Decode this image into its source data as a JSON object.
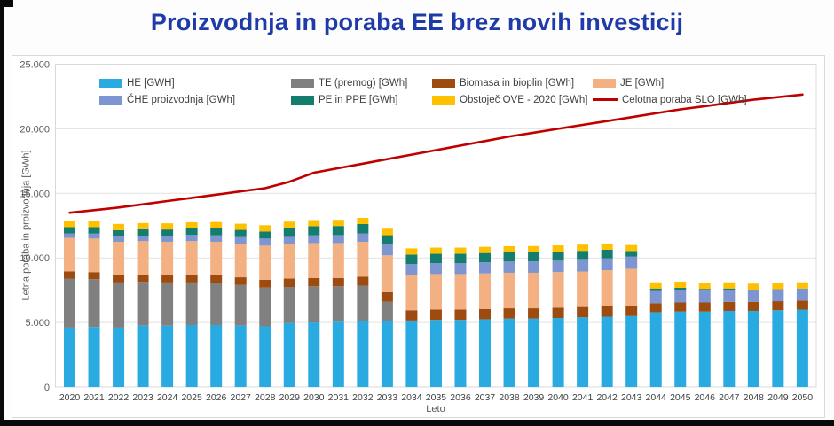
{
  "title": "Proizvodnja in poraba EE brez novih investicij",
  "colors": {
    "title": "#1f3ba8",
    "axis_text": "#595959",
    "x_tick_text": "#404040",
    "gridline": "#e2e2e2",
    "plot_border": "#d9d9d9",
    "chart_background": "#ffffff"
  },
  "chart_data": {
    "type": "bar",
    "subtype": "stacked-bars-with-line-overlay",
    "title": "Proizvodnja in poraba EE brez novih investicij",
    "xlabel": "Leto",
    "ylabel": "Letna poraba in proizvodnja [GWh]",
    "ylim": [
      0,
      25000
    ],
    "grid": true,
    "legend_position": "top-inside",
    "yticks": [
      "0",
      "5.000",
      "10.000",
      "15.000",
      "20.000",
      "25.000"
    ],
    "ytick_values": [
      0,
      5000,
      10000,
      15000,
      20000,
      25000
    ],
    "x": [
      "2020",
      "2021",
      "2022",
      "2023",
      "2024",
      "2025",
      "2026",
      "2027",
      "2028",
      "2029",
      "2030",
      "2031",
      "2032",
      "2033",
      "2034",
      "2035",
      "2036",
      "2037",
      "2038",
      "2039",
      "2040",
      "2041",
      "2042",
      "2043",
      "2044",
      "2045",
      "2046",
      "2047",
      "2048",
      "2049",
      "2050"
    ],
    "series": [
      {
        "name": "HE [GWH]",
        "color": "#29abe2",
        "values": [
          4600,
          4650,
          4600,
          4750,
          4750,
          4800,
          4800,
          4750,
          4700,
          4950,
          5000,
          5050,
          5100,
          5100,
          5150,
          5200,
          5200,
          5250,
          5300,
          5300,
          5350,
          5400,
          5450,
          5500,
          5800,
          5850,
          5850,
          5900,
          5900,
          5950,
          6000
        ]
      },
      {
        "name": "TE (premog) [GWh]",
        "color": "#808080",
        "values": [
          3800,
          3700,
          3500,
          3400,
          3350,
          3300,
          3250,
          3150,
          3000,
          2800,
          2800,
          2750,
          2750,
          1500,
          0,
          0,
          0,
          0,
          0,
          0,
          0,
          0,
          0,
          0,
          0,
          0,
          0,
          0,
          0,
          0,
          0
        ]
      },
      {
        "name": "Biomasa in bioplin [GWh]",
        "color": "#9e4b0f",
        "values": [
          550,
          550,
          550,
          550,
          550,
          600,
          600,
          600,
          600,
          650,
          650,
          650,
          700,
          750,
          800,
          800,
          800,
          800,
          800,
          800,
          800,
          800,
          800,
          760,
          700,
          700,
          700,
          700,
          700,
          700,
          700
        ]
      },
      {
        "name": "JE [GWh]",
        "color": "#f3b183",
        "values": [
          2600,
          2600,
          2600,
          2600,
          2600,
          2600,
          2600,
          2600,
          2650,
          2650,
          2700,
          2700,
          2700,
          2850,
          2750,
          2750,
          2750,
          2750,
          2750,
          2750,
          2750,
          2750,
          2800,
          2900,
          0,
          0,
          0,
          0,
          0,
          0,
          0
        ]
      },
      {
        "name": "ČHE proizvodnja [GWh]",
        "color": "#7d95d0",
        "values": [
          350,
          380,
          400,
          420,
          450,
          480,
          500,
          520,
          550,
          580,
          600,
          620,
          650,
          830,
          830,
          840,
          850,
          860,
          870,
          880,
          890,
          900,
          910,
          940,
          930,
          930,
          930,
          930,
          930,
          930,
          930
        ]
      },
      {
        "name": "PE in PPE [GWh]",
        "color": "#147d6d",
        "values": [
          480,
          500,
          500,
          500,
          500,
          500,
          550,
          550,
          550,
          700,
          700,
          700,
          720,
          730,
          730,
          730,
          720,
          720,
          710,
          710,
          700,
          700,
          680,
          440,
          200,
          200,
          120,
          100,
          0,
          0,
          0
        ]
      },
      {
        "name": "Obstoječ OVE - 2020 [GWh]",
        "color": "#ffc000",
        "values": [
          480,
          480,
          480,
          480,
          480,
          480,
          480,
          480,
          480,
          480,
          480,
          480,
          480,
          500,
          480,
          480,
          480,
          480,
          480,
          480,
          480,
          480,
          480,
          460,
          480,
          480,
          480,
          480,
          480,
          480,
          480
        ]
      }
    ],
    "line": {
      "name": "Celotna poraba SLO [GWh]",
      "color": "#c00000",
      "values": [
        13500,
        13700,
        13900,
        14150,
        14400,
        14650,
        14900,
        15150,
        15400,
        15900,
        16600,
        16950,
        17300,
        17650,
        18000,
        18350,
        18700,
        19050,
        19400,
        19700,
        20000,
        20300,
        20600,
        20900,
        21200,
        21500,
        21750,
        22000,
        22250,
        22450,
        22650
      ]
    }
  }
}
